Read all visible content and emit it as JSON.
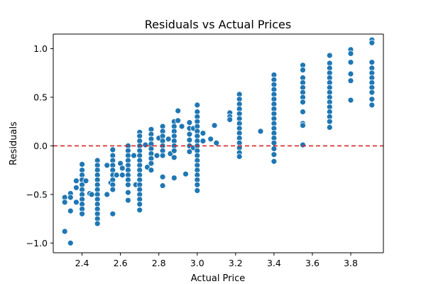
{
  "chart_data": {
    "type": "scatter",
    "title": "Residuals vs Actual Prices",
    "xlabel": "Actual Price",
    "ylabel": "Residuals",
    "xlim": [
      2.25,
      3.97
    ],
    "ylim": [
      -1.1,
      1.15
    ],
    "xticks": [
      2.4,
      2.6,
      2.8,
      3.0,
      3.2,
      3.4,
      3.6,
      3.8
    ],
    "xtick_labels": [
      "2.4",
      "2.6",
      "2.8",
      "3.0",
      "3.2",
      "3.4",
      "3.6",
      "3.8"
    ],
    "yticks": [
      -1.0,
      -0.5,
      0.0,
      0.5,
      1.0
    ],
    "ytick_labels": [
      "−1.0",
      "−0.5",
      "0.0",
      "0.5",
      "1.0"
    ],
    "reference_line": {
      "y": 0.0,
      "style": "dashed",
      "color": "#d62728"
    },
    "point_color": "#1f77b4",
    "points": [
      [
        2.31,
        -0.53
      ],
      [
        2.31,
        -0.58
      ],
      [
        2.31,
        -0.88
      ],
      [
        2.34,
        -1.0
      ],
      [
        2.34,
        -0.67
      ],
      [
        2.34,
        -0.49
      ],
      [
        2.34,
        -0.53
      ],
      [
        2.37,
        -0.36
      ],
      [
        2.37,
        -0.43
      ],
      [
        2.37,
        -0.58
      ],
      [
        2.4,
        -0.19
      ],
      [
        2.4,
        -0.25
      ],
      [
        2.4,
        -0.3
      ],
      [
        2.4,
        -0.35
      ],
      [
        2.4,
        -0.4
      ],
      [
        2.4,
        -0.45
      ],
      [
        2.4,
        -0.5
      ],
      [
        2.4,
        -0.55
      ],
      [
        2.4,
        -0.6
      ],
      [
        2.4,
        -0.65
      ],
      [
        2.4,
        -0.7
      ],
      [
        2.42,
        -0.36
      ],
      [
        2.44,
        -0.49
      ],
      [
        2.45,
        -0.5
      ],
      [
        2.48,
        -0.15
      ],
      [
        2.48,
        -0.2
      ],
      [
        2.48,
        -0.25
      ],
      [
        2.48,
        -0.3
      ],
      [
        2.48,
        -0.35
      ],
      [
        2.48,
        -0.4
      ],
      [
        2.48,
        -0.45
      ],
      [
        2.48,
        -0.5
      ],
      [
        2.48,
        -0.55
      ],
      [
        2.48,
        -0.6
      ],
      [
        2.48,
        -0.65
      ],
      [
        2.48,
        -0.7
      ],
      [
        2.48,
        -0.75
      ],
      [
        2.48,
        -0.8
      ],
      [
        2.53,
        -0.2
      ],
      [
        2.53,
        -0.5
      ],
      [
        2.55,
        -0.38
      ],
      [
        2.56,
        -0.04
      ],
      [
        2.56,
        -0.1
      ],
      [
        2.56,
        -0.15
      ],
      [
        2.56,
        -0.2
      ],
      [
        2.56,
        -0.25
      ],
      [
        2.56,
        -0.3
      ],
      [
        2.56,
        -0.35
      ],
      [
        2.56,
        -0.4
      ],
      [
        2.56,
        -0.45
      ],
      [
        2.56,
        -0.7
      ],
      [
        2.58,
        -0.3
      ],
      [
        2.6,
        -0.18
      ],
      [
        2.61,
        -0.23
      ],
      [
        2.61,
        -0.3
      ],
      [
        2.64,
        0.0
      ],
      [
        2.64,
        -0.05
      ],
      [
        2.64,
        -0.1
      ],
      [
        2.64,
        -0.15
      ],
      [
        2.64,
        -0.2
      ],
      [
        2.64,
        -0.25
      ],
      [
        2.64,
        -0.3
      ],
      [
        2.64,
        -0.35
      ],
      [
        2.64,
        -0.4
      ],
      [
        2.64,
        -0.48
      ],
      [
        2.64,
        -0.56
      ],
      [
        2.67,
        -0.1
      ],
      [
        2.68,
        -0.4
      ],
      [
        2.7,
        0.14
      ],
      [
        2.7,
        0.1
      ],
      [
        2.7,
        0.05
      ],
      [
        2.7,
        0.0
      ],
      [
        2.7,
        -0.05
      ],
      [
        2.7,
        -0.1
      ],
      [
        2.7,
        -0.15
      ],
      [
        2.7,
        -0.2
      ],
      [
        2.7,
        -0.25
      ],
      [
        2.7,
        -0.3
      ],
      [
        2.7,
        -0.35
      ],
      [
        2.7,
        -0.4
      ],
      [
        2.7,
        -0.45
      ],
      [
        2.7,
        -0.5
      ],
      [
        2.7,
        -0.55
      ],
      [
        2.7,
        -0.6
      ],
      [
        2.7,
        -0.66
      ],
      [
        2.73,
        0.01
      ],
      [
        2.74,
        -0.22
      ],
      [
        2.76,
        0.17
      ],
      [
        2.76,
        0.12
      ],
      [
        2.76,
        0.07
      ],
      [
        2.76,
        0.02
      ],
      [
        2.76,
        -0.03
      ],
      [
        2.76,
        -0.08
      ],
      [
        2.76,
        -0.13
      ],
      [
        2.76,
        -0.18
      ],
      [
        2.76,
        -0.25
      ],
      [
        2.79,
        -0.1
      ],
      [
        2.8,
        0.08
      ],
      [
        2.82,
        0.2
      ],
      [
        2.82,
        0.15
      ],
      [
        2.82,
        0.1
      ],
      [
        2.82,
        0.05
      ],
      [
        2.82,
        0.0
      ],
      [
        2.82,
        -0.05
      ],
      [
        2.82,
        -0.1
      ],
      [
        2.82,
        -0.32
      ],
      [
        2.82,
        -0.41
      ],
      [
        2.85,
        0.07
      ],
      [
        2.86,
        -0.08
      ],
      [
        2.88,
        0.25
      ],
      [
        2.88,
        0.2
      ],
      [
        2.88,
        0.15
      ],
      [
        2.88,
        0.1
      ],
      [
        2.88,
        0.05
      ],
      [
        2.88,
        0.0
      ],
      [
        2.88,
        -0.05
      ],
      [
        2.88,
        -0.12
      ],
      [
        2.88,
        -0.33
      ],
      [
        2.9,
        0.36
      ],
      [
        2.9,
        0.26
      ],
      [
        2.92,
        0.2
      ],
      [
        2.94,
        -0.29
      ],
      [
        2.96,
        0.24
      ],
      [
        2.96,
        0.18
      ],
      [
        2.96,
        0.12
      ],
      [
        2.96,
        0.06
      ],
      [
        2.96,
        0.0
      ],
      [
        2.96,
        -0.06
      ],
      [
        2.98,
        0.18
      ],
      [
        2.98,
        -0.02
      ],
      [
        3.0,
        0.42
      ],
      [
        3.0,
        0.35
      ],
      [
        3.0,
        0.3
      ],
      [
        3.0,
        0.25
      ],
      [
        3.0,
        0.2
      ],
      [
        3.0,
        0.15
      ],
      [
        3.0,
        0.1
      ],
      [
        3.0,
        0.05
      ],
      [
        3.0,
        0.0
      ],
      [
        3.0,
        -0.05
      ],
      [
        3.0,
        -0.1
      ],
      [
        3.0,
        -0.15
      ],
      [
        3.0,
        -0.2
      ],
      [
        3.0,
        -0.25
      ],
      [
        3.0,
        -0.3
      ],
      [
        3.0,
        -0.35
      ],
      [
        3.0,
        -0.4
      ],
      [
        3.0,
        -0.46
      ],
      [
        3.03,
        0.13
      ],
      [
        3.03,
        0.05
      ],
      [
        3.07,
        0.07
      ],
      [
        3.09,
        0.21
      ],
      [
        3.1,
        0.03
      ],
      [
        3.17,
        0.34
      ],
      [
        3.17,
        0.3
      ],
      [
        3.17,
        0.27
      ],
      [
        3.22,
        0.53
      ],
      [
        3.22,
        0.48
      ],
      [
        3.22,
        0.43
      ],
      [
        3.22,
        0.38
      ],
      [
        3.22,
        0.33
      ],
      [
        3.22,
        0.28
      ],
      [
        3.22,
        0.23
      ],
      [
        3.22,
        0.18
      ],
      [
        3.22,
        0.13
      ],
      [
        3.22,
        0.08
      ],
      [
        3.22,
        0.03
      ],
      [
        3.22,
        -0.02
      ],
      [
        3.22,
        -0.07
      ],
      [
        3.22,
        -0.11
      ],
      [
        3.33,
        0.15
      ],
      [
        3.4,
        0.73
      ],
      [
        3.4,
        0.68
      ],
      [
        3.4,
        0.63
      ],
      [
        3.4,
        0.58
      ],
      [
        3.4,
        0.53
      ],
      [
        3.4,
        0.48
      ],
      [
        3.4,
        0.43
      ],
      [
        3.4,
        0.38
      ],
      [
        3.4,
        0.33
      ],
      [
        3.4,
        0.28
      ],
      [
        3.4,
        0.23
      ],
      [
        3.4,
        0.18
      ],
      [
        3.4,
        0.13
      ],
      [
        3.4,
        0.08
      ],
      [
        3.4,
        0.03
      ],
      [
        3.4,
        -0.03
      ],
      [
        3.4,
        -0.09
      ],
      [
        3.4,
        -0.16
      ],
      [
        3.55,
        0.83
      ],
      [
        3.55,
        0.78
      ],
      [
        3.55,
        0.7
      ],
      [
        3.55,
        0.65
      ],
      [
        3.55,
        0.6
      ],
      [
        3.55,
        0.55
      ],
      [
        3.55,
        0.5
      ],
      [
        3.55,
        0.45
      ],
      [
        3.55,
        0.35
      ],
      [
        3.55,
        0.23
      ],
      [
        3.55,
        0.21
      ],
      [
        3.55,
        0.01
      ],
      [
        3.69,
        0.93
      ],
      [
        3.69,
        0.85
      ],
      [
        3.69,
        0.8
      ],
      [
        3.69,
        0.75
      ],
      [
        3.69,
        0.7
      ],
      [
        3.69,
        0.65
      ],
      [
        3.69,
        0.6
      ],
      [
        3.69,
        0.55
      ],
      [
        3.69,
        0.5
      ],
      [
        3.69,
        0.45
      ],
      [
        3.69,
        0.4
      ],
      [
        3.69,
        0.35
      ],
      [
        3.69,
        0.3
      ],
      [
        3.69,
        0.25
      ],
      [
        3.69,
        0.19
      ],
      [
        3.8,
        0.99
      ],
      [
        3.8,
        0.95
      ],
      [
        3.8,
        0.86
      ],
      [
        3.8,
        0.74
      ],
      [
        3.8,
        0.67
      ],
      [
        3.8,
        0.47
      ],
      [
        3.91,
        1.09
      ],
      [
        3.91,
        1.06
      ],
      [
        3.91,
        0.86
      ],
      [
        3.91,
        0.8
      ],
      [
        3.91,
        0.75
      ],
      [
        3.91,
        0.7
      ],
      [
        3.91,
        0.65
      ],
      [
        3.91,
        0.6
      ],
      [
        3.91,
        0.55
      ],
      [
        3.91,
        0.48
      ],
      [
        3.91,
        0.42
      ]
    ]
  }
}
